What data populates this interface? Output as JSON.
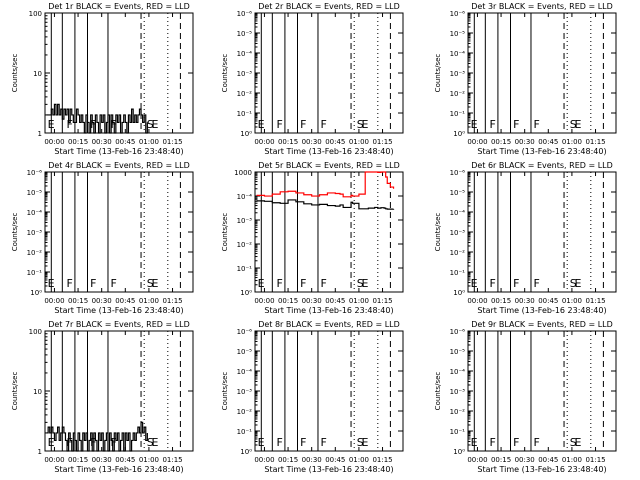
{
  "figure": {
    "background": "#ffffff",
    "foreground": "#000000",
    "lld_color": "#ff0000"
  },
  "chart_data": [
    {
      "type": "line",
      "detector": "1r",
      "title": "Det 1r BLACK = Events, RED = LLD",
      "xlabel": "Start Time (13-Feb-16 23:48:40)",
      "ylabel": "Counts/sec",
      "xticks": [
        "00:00",
        "00:15",
        "00:30",
        "00:45",
        "01:00",
        "01:15"
      ],
      "yscale": "log",
      "ylim": [
        1,
        100
      ],
      "yticks": [
        "1",
        "10",
        "100"
      ],
      "x_minutes": [
        -5,
        -2,
        -1,
        0,
        1,
        2,
        3,
        4,
        5,
        6,
        7,
        8,
        9,
        10,
        11,
        12,
        13,
        14,
        15,
        16,
        17,
        18,
        19,
        20,
        21,
        22,
        23,
        24,
        25,
        26,
        27,
        28,
        29,
        30,
        31,
        32,
        33,
        34,
        35,
        36,
        37,
        38,
        39,
        40,
        41,
        42,
        43,
        44,
        45,
        46,
        47,
        48,
        49,
        50,
        51,
        52,
        53,
        54,
        55,
        56,
        57,
        58,
        59
      ],
      "series": [
        {
          "values": [
            2,
            2.5,
            2,
            3,
            2,
            3,
            2,
            2.5,
            1.7,
            2.5,
            2,
            2.5,
            1.5,
            2.5,
            2,
            1.5,
            1.5,
            2.5,
            2,
            1.5,
            2,
            1.5,
            1,
            2,
            1.5,
            1,
            2,
            1.5,
            1,
            2,
            1.5,
            1,
            2,
            1.5,
            2,
            1,
            1.5,
            2,
            1,
            2,
            1.5,
            1,
            2,
            1.5,
            2,
            1,
            1.5,
            2,
            1.5,
            1,
            2,
            1.5,
            2.5,
            1.5,
            2,
            1.5,
            2,
            2.5,
            2,
            1.5,
            2,
            1,
            1.5
          ],
          "color": "#000000"
        }
      ]
    },
    {
      "type": "line",
      "detector": "2r",
      "title": "Det 2r BLACK = Events, RED = LLD",
      "xlabel": "Start Time (13-Feb-16 23:48:40)",
      "ylabel": "Counts/sec",
      "xticks": [
        "00:00",
        "00:15",
        "00:30",
        "00:45",
        "01:00",
        "01:15"
      ],
      "yscale": "log",
      "ylim": [
        1,
        1000000
      ],
      "yticks": [
        "10⁰",
        "10⁻¹",
        "10⁻²",
        "10⁻³",
        "10⁻⁴",
        "10⁻⁵",
        "10⁻⁶"
      ],
      "series": []
    },
    {
      "type": "line",
      "detector": "3r",
      "title": "Det 3r BLACK = Events, RED = LLD",
      "xlabel": "Start Time (13-Feb-16 23:48:40)",
      "ylabel": "Counts/sec",
      "xticks": [
        "00:00",
        "00:15",
        "00:30",
        "00:45",
        "01:00",
        "01:15"
      ],
      "yscale": "log",
      "ylim": [
        1,
        1000000
      ],
      "yticks": [
        "10⁰",
        "10⁻¹",
        "10⁻²",
        "10⁻³",
        "10⁻⁴",
        "10⁻⁵",
        "10⁻⁶"
      ],
      "series": []
    },
    {
      "type": "line",
      "detector": "4r",
      "title": "Det 4r BLACK = Events, RED = LLD",
      "xlabel": "Start Time (13-Feb-16 23:48:40)",
      "ylabel": "Counts/sec",
      "xticks": [
        "00:00",
        "00:15",
        "00:30",
        "00:45",
        "01:00",
        "01:15"
      ],
      "yscale": "log",
      "ylim": [
        1,
        1000000
      ],
      "yticks": [
        "10⁰",
        "10⁻¹",
        "10⁻²",
        "10⁻³",
        "10⁻⁴",
        "10⁻⁵",
        "10⁻⁶"
      ],
      "series": []
    },
    {
      "type": "line",
      "detector": "5r",
      "title": "Det 5r BLACK = Events, RED = LLD",
      "xlabel": "Start Time (13-Feb-16 23:48:40)",
      "ylabel": "Counts/sec",
      "xticks": [
        "00:00",
        "00:15",
        "00:30",
        "00:45",
        "01:00",
        "01:15"
      ],
      "yscale": "log",
      "ylim": [
        1,
        1000
      ],
      "yticks": [
        "10⁰",
        "10⁻¹",
        "10⁻²",
        "10⁻³",
        "10⁻⁴",
        "1000"
      ],
      "x_minutes": [
        -5,
        0,
        5,
        10,
        15,
        20,
        25,
        30,
        35,
        40,
        45,
        48,
        50,
        55,
        56,
        60,
        64,
        66,
        70,
        72,
        74,
        76,
        77,
        78,
        80,
        82
      ],
      "series": [
        {
          "values": [
            190,
            185,
            170,
            165,
            200,
            180,
            160,
            150,
            155,
            145,
            140,
            150,
            130,
            175,
            165,
            120,
            120,
            125,
            130,
            125,
            128,
            125,
            120,
            118,
            118,
            119
          ],
          "color": "#000000"
        },
        {
          "values": [
            260,
            250,
            280,
            320,
            330,
            300,
            270,
            250,
            270,
            300,
            290,
            280,
            240,
            260,
            250,
            280,
            1000,
            1000,
            1000,
            980,
            1000,
            1000,
            750,
            520,
            420,
            380
          ],
          "color": "#ff0000"
        }
      ]
    },
    {
      "type": "line",
      "detector": "6r",
      "title": "Det 6r BLACK = Events, RED = LLD",
      "xlabel": "Start Time (13-Feb-16 23:48:40)",
      "ylabel": "Counts/sec",
      "xticks": [
        "00:00",
        "00:15",
        "00:30",
        "00:45",
        "01:00",
        "01:15"
      ],
      "yscale": "log",
      "ylim": [
        1,
        1000000
      ],
      "yticks": [
        "10⁰",
        "10⁻¹",
        "10⁻²",
        "10⁻³",
        "10⁻⁴",
        "10⁻⁵",
        "10⁻⁶"
      ],
      "series": []
    },
    {
      "type": "line",
      "detector": "7r",
      "title": "Det 7r BLACK = Events, RED = LLD",
      "xlabel": "Start Time (13-Feb-16 23:48:40)",
      "ylabel": "Counts/sec",
      "xticks": [
        "00:00",
        "00:15",
        "00:30",
        "00:45",
        "01:00",
        "01:15"
      ],
      "yscale": "log",
      "ylim": [
        1,
        100
      ],
      "yticks": [
        "1",
        "10",
        "100"
      ],
      "x_minutes": [
        -5,
        -4,
        -3,
        -2,
        -1,
        0,
        1,
        2,
        3,
        4,
        5,
        6,
        7,
        8,
        9,
        10,
        11,
        12,
        13,
        14,
        15,
        16,
        17,
        18,
        19,
        20,
        21,
        22,
        23,
        24,
        25,
        26,
        27,
        28,
        29,
        30,
        31,
        32,
        33,
        34,
        35,
        36,
        37,
        38,
        39,
        40,
        41,
        42,
        43,
        44,
        45,
        46,
        47,
        48,
        49,
        50,
        51,
        52,
        53,
        54,
        55,
        56,
        57,
        58,
        59
      ],
      "series": [
        {
          "values": [
            2,
            2.5,
            2,
            2.5,
            2,
            1.5,
            2,
            2.5,
            1.5,
            2,
            2.5,
            2,
            1.5,
            1,
            2,
            1.5,
            1,
            2,
            1.5,
            1,
            2,
            1.5,
            1,
            2,
            1.5,
            2,
            1,
            1.5,
            2,
            1,
            2,
            1.5,
            1,
            2,
            1.5,
            2,
            1,
            1.5,
            2,
            1,
            2,
            1.5,
            1,
            2,
            1.5,
            2,
            1,
            1.5,
            2,
            1,
            2,
            1.5,
            2,
            1,
            1.5,
            2,
            1.5,
            2,
            2.5,
            2,
            3,
            2,
            2.5,
            1.5,
            2
          ],
          "color": "#000000"
        }
      ]
    },
    {
      "type": "line",
      "detector": "8r",
      "title": "Det 8r BLACK = Events, RED = LLD",
      "xlabel": "Start Time (13-Feb-16 23:48:40)",
      "ylabel": "Counts/sec",
      "xticks": [
        "00:00",
        "00:15",
        "00:30",
        "00:45",
        "01:00",
        "01:15"
      ],
      "yscale": "log",
      "ylim": [
        1,
        1000000
      ],
      "yticks": [
        "10⁰",
        "10⁻¹",
        "10⁻²",
        "10⁻³",
        "10⁻⁴",
        "10⁻⁵",
        "10⁻⁶"
      ],
      "series": []
    },
    {
      "type": "line",
      "detector": "9r",
      "title": "Det 9r BLACK = Events, RED = LLD",
      "xlabel": "Start Time (13-Feb-16 23:48:40)",
      "ylabel": "Counts/sec",
      "xticks": [
        "00:00",
        "00:15",
        "00:30",
        "00:45",
        "01:00",
        "01:15"
      ],
      "yscale": "log",
      "ylim": [
        1,
        1000000
      ],
      "yticks": [
        "10⁰",
        "10⁻¹",
        "10⁻²",
        "10⁻³",
        "10⁻⁴",
        "10⁻⁵",
        "10⁻⁶"
      ],
      "series": []
    }
  ],
  "markers": {
    "solid_lines_minutes": [
      -2,
      5,
      13,
      21,
      34
    ],
    "dashed_lines_minutes": [
      55,
      80
    ],
    "dotted_lines_minutes": [
      57,
      72
    ],
    "flag_labels": [
      {
        "minute": -5,
        "text": "E"
      },
      {
        "minute": 7,
        "text": "F"
      },
      {
        "minute": 22,
        "text": "F"
      },
      {
        "minute": 35,
        "text": "F"
      },
      {
        "minute": 58,
        "text": "S"
      },
      {
        "minute": 61,
        "text": "E"
      }
    ]
  }
}
